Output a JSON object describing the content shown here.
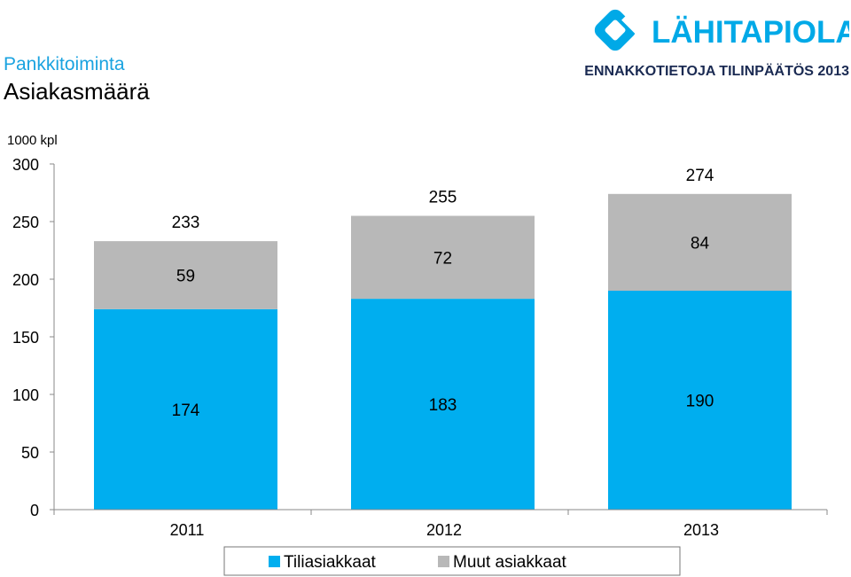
{
  "header": {
    "title": "Pankkitoiminta",
    "subtitle": "Asiakasmäärä",
    "report_label": "ENNAKKOTIETOJA TILINPÄÄTÖS 2013",
    "logo_text": "LÄHITAPIOLA"
  },
  "colors": {
    "accent": "#1aa3e0",
    "logo_blue": "#00a9e7",
    "report_navy": "#1a2a52",
    "tiliasiakkaat": "#00aeef",
    "muut": "#b8b8b8"
  },
  "chart_data": {
    "type": "bar",
    "stacked": true,
    "title": "",
    "xlabel": "",
    "ylabel": "1000 kpl",
    "ylim": [
      0,
      300
    ],
    "yticks": [
      0,
      50,
      100,
      150,
      200,
      250,
      300
    ],
    "categories": [
      "2011",
      "2012",
      "2013"
    ],
    "series": [
      {
        "name": "Tiliasiakkaat",
        "values": [
          174,
          183,
          190
        ],
        "color": "#00aeef"
      },
      {
        "name": "Muut asiakkaat",
        "values": [
          59,
          72,
          84
        ],
        "color": "#b8b8b8"
      }
    ],
    "totals": [
      233,
      255,
      274
    ],
    "legend": "bottom",
    "grid": false
  }
}
